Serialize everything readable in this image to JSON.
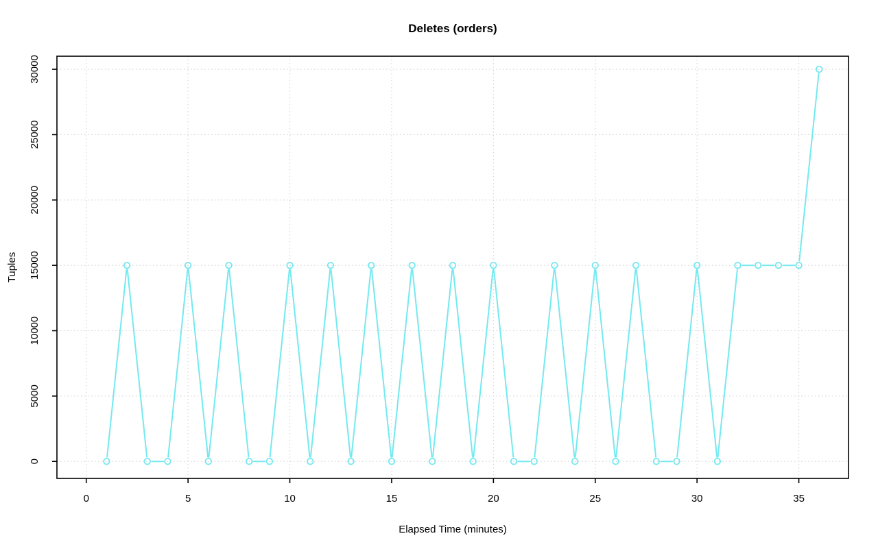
{
  "chart_data": {
    "type": "line",
    "title": "Deletes (orders)",
    "xlabel": "Elapsed Time (minutes)",
    "ylabel": "Tuples",
    "x": [
      1,
      2,
      3,
      4,
      5,
      6,
      7,
      8,
      9,
      10,
      11,
      12,
      13,
      14,
      15,
      16,
      17,
      18,
      19,
      20,
      21,
      22,
      23,
      24,
      25,
      26,
      27,
      28,
      29,
      30,
      31,
      32,
      33,
      34,
      35,
      36
    ],
    "values": [
      0,
      15000,
      0,
      0,
      15000,
      0,
      15000,
      0,
      0,
      15000,
      0,
      15000,
      0,
      15000,
      0,
      15000,
      0,
      15000,
      0,
      15000,
      0,
      0,
      15000,
      0,
      15000,
      0,
      15000,
      0,
      0,
      15000,
      0,
      15000,
      15000,
      15000,
      15000,
      30000
    ],
    "x_ticks": [
      0,
      5,
      10,
      15,
      20,
      25,
      30,
      35
    ],
    "y_ticks": [
      0,
      5000,
      10000,
      15000,
      20000,
      25000,
      30000
    ],
    "x_range": [
      -1.44,
      37.44
    ],
    "y_range": [
      -1300,
      31000
    ],
    "grid": "dotted, at every axis tick",
    "legend": "none",
    "marker": "open-circle",
    "line_style": "segments-with-gaps-at-markers",
    "colors": {
      "series": "#73E9F0",
      "grid": "#D3D3D3",
      "axis": "#000000",
      "background": "#FFFFFF"
    }
  }
}
